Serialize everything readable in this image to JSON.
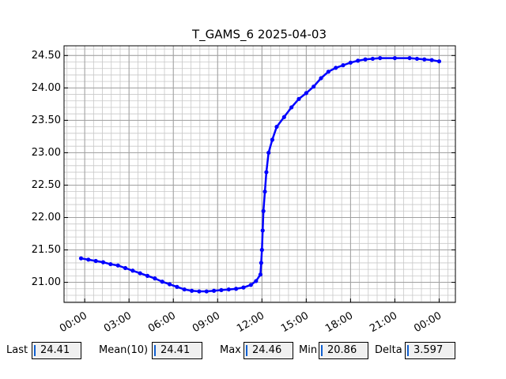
{
  "chart_data": {
    "type": "line",
    "title": "T_GAMS_6 2025-04-03",
    "x": [
      -0.25,
      0.25,
      0.75,
      1.25,
      1.75,
      2.25,
      2.75,
      3.25,
      3.75,
      4.25,
      4.75,
      5.25,
      5.75,
      6.25,
      6.75,
      7.25,
      7.75,
      8.25,
      8.75,
      9.25,
      9.75,
      10.25,
      10.75,
      11.25,
      11.6,
      11.9,
      11.95,
      12.0,
      12.05,
      12.1,
      12.2,
      12.3,
      12.45,
      12.7,
      13.0,
      13.5,
      14.0,
      14.5,
      15.0,
      15.5,
      16.0,
      16.5,
      17.0,
      17.5,
      18.0,
      18.5,
      19.0,
      19.5,
      20.0,
      21.0,
      22.0,
      22.5,
      23.0,
      23.5,
      24.0
    ],
    "series": [
      {
        "name": "T_GAMS_6",
        "color": "#0000ff",
        "values": [
          21.37,
          21.35,
          21.33,
          21.31,
          21.28,
          21.26,
          21.22,
          21.18,
          21.14,
          21.1,
          21.06,
          21.01,
          20.97,
          20.93,
          20.89,
          20.87,
          20.86,
          20.86,
          20.87,
          20.88,
          20.89,
          20.9,
          20.92,
          20.96,
          21.02,
          21.12,
          21.3,
          21.5,
          21.8,
          22.1,
          22.4,
          22.7,
          23.0,
          23.2,
          23.4,
          23.55,
          23.7,
          23.83,
          23.92,
          24.02,
          24.15,
          24.25,
          24.31,
          24.35,
          24.39,
          24.42,
          24.44,
          24.45,
          24.46,
          24.46,
          24.46,
          24.45,
          24.44,
          24.43,
          24.41
        ]
      }
    ],
    "xlim": [
      -1.4,
      25.1
    ],
    "ylim": [
      20.69,
      24.65
    ],
    "xticks": [
      {
        "value": 0,
        "label": "00:00"
      },
      {
        "value": 3,
        "label": "03:00"
      },
      {
        "value": 6,
        "label": "06:00"
      },
      {
        "value": 9,
        "label": "09:00"
      },
      {
        "value": 12,
        "label": "12:00"
      },
      {
        "value": 15,
        "label": "15:00"
      },
      {
        "value": 18,
        "label": "18:00"
      },
      {
        "value": 21,
        "label": "21:00"
      },
      {
        "value": 24,
        "label": "00:00"
      }
    ],
    "yticks": [
      {
        "value": 21,
        "label": "21.00"
      },
      {
        "value": 21.5,
        "label": "21.50"
      },
      {
        "value": 22,
        "label": "22.00"
      },
      {
        "value": 22.5,
        "label": "22.50"
      },
      {
        "value": 23,
        "label": "23.00"
      },
      {
        "value": 23.5,
        "label": "23.50"
      },
      {
        "value": 24,
        "label": "24.00"
      },
      {
        "value": 24.5,
        "label": "24.50"
      }
    ],
    "grid": true,
    "minor_grid": true
  },
  "status": [
    {
      "label": "Last",
      "value": 24.41
    },
    {
      "label": "Mean(10)",
      "value": 24.41
    },
    {
      "label": "Max",
      "value": 24.46
    },
    {
      "label": "Min",
      "value": 20.86
    },
    {
      "label": "Delta",
      "value": 3.597
    }
  ]
}
